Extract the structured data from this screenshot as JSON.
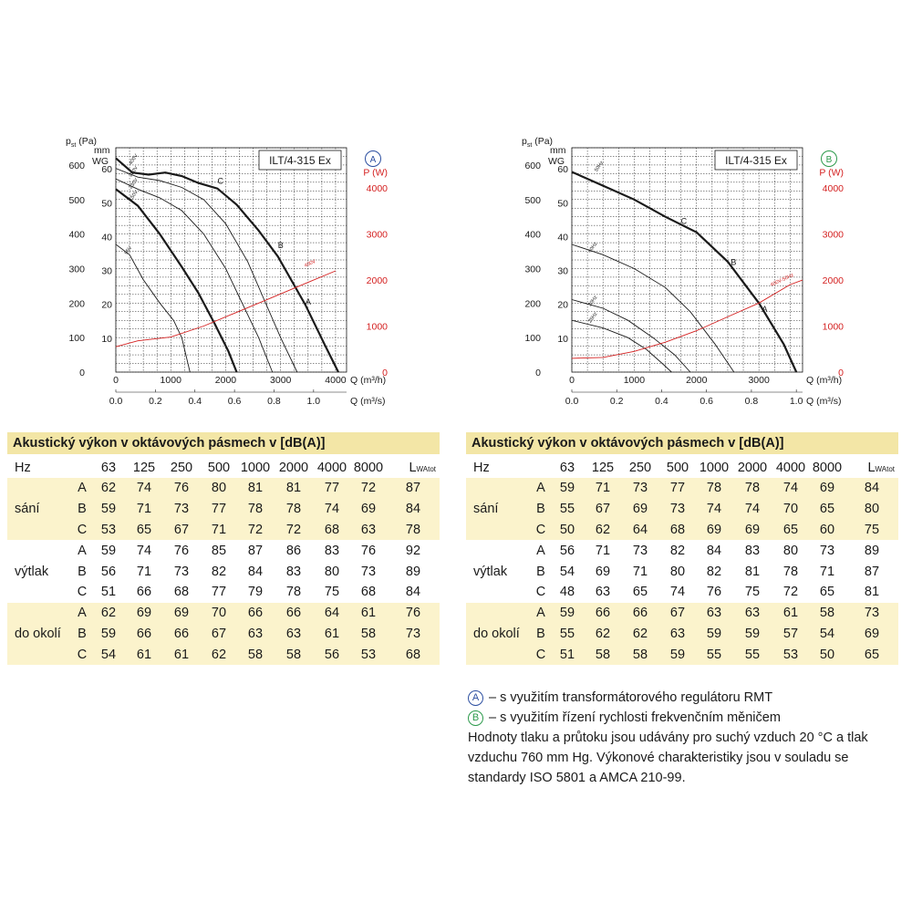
{
  "chart_data": [
    {
      "type": "line",
      "model_label": "ILT/4-315 Ex",
      "badge": "A",
      "badge_color": "#2b4ea0",
      "y_left_label": "pst (Pa)",
      "y_left_unit_main": "p",
      "y_left_unit_sub": "st",
      "y_left_unit_tail": "(Pa)",
      "y_mm_label_1": "mm",
      "y_mm_label_2": "WG",
      "y_right_label": "P (W)",
      "x_top_label": "Q (m³/h)",
      "x_bottom_label": "Q (m³/s)",
      "x_top_ticks": [
        "0",
        "1000",
        "2000",
        "3000",
        "4000"
      ],
      "x_bottom_ticks": [
        "0.0",
        "0.2",
        "0.4",
        "0.6",
        "0.8",
        "1.0"
      ],
      "y_pa_ticks": [
        "0",
        "100",
        "200",
        "300",
        "400",
        "500",
        "600"
      ],
      "y_mm_ticks": [
        "10",
        "20",
        "30",
        "40",
        "50",
        "60"
      ],
      "y_w_ticks": [
        "0",
        "1000",
        "2000",
        "3000",
        "4000"
      ],
      "xlim": [
        0,
        4200
      ],
      "ylim": [
        0,
        650
      ],
      "wlim": [
        0,
        4875
      ],
      "curve_color": "#1a1a1a",
      "power_color": "#d42020",
      "point_labels": [
        {
          "text": "C",
          "x": 1850,
          "y": 545
        },
        {
          "text": "B",
          "x": 2950,
          "y": 360
        },
        {
          "text": "A",
          "x": 3450,
          "y": 195
        }
      ],
      "series": [
        {
          "name": "400V",
          "bold": true,
          "label_at": [
            280,
            600
          ],
          "points": [
            [
              0,
              620
            ],
            [
              300,
              578
            ],
            [
              600,
              572
            ],
            [
              900,
              578
            ],
            [
              1200,
              568
            ],
            [
              1500,
              548
            ],
            [
              1850,
              532
            ],
            [
              2200,
              485
            ],
            [
              2600,
              410
            ],
            [
              2950,
              335
            ],
            [
              3450,
              195
            ],
            [
              3800,
              80
            ],
            [
              4050,
              0
            ]
          ]
        },
        {
          "name": "280V",
          "bold": false,
          "label_at": [
            280,
            565
          ],
          "points": [
            [
              0,
              590
            ],
            [
              400,
              565
            ],
            [
              800,
              555
            ],
            [
              1200,
              535
            ],
            [
              1600,
              500
            ],
            [
              2000,
              430
            ],
            [
              2400,
              320
            ],
            [
              2700,
              210
            ],
            [
              3000,
              100
            ],
            [
              3300,
              0
            ]
          ]
        },
        {
          "name": "230V",
          "bold": false,
          "label_at": [
            280,
            530
          ],
          "points": [
            [
              0,
              560
            ],
            [
              400,
              530
            ],
            [
              800,
              505
            ],
            [
              1200,
              468
            ],
            [
              1600,
              400
            ],
            [
              2000,
              300
            ],
            [
              2300,
              200
            ],
            [
              2600,
              100
            ],
            [
              2850,
              0
            ]
          ]
        },
        {
          "name": "150V",
          "bold": true,
          "label_at": [
            280,
            495
          ],
          "points": [
            [
              0,
              530
            ],
            [
              400,
              482
            ],
            [
              800,
              400
            ],
            [
              1200,
              305
            ],
            [
              1500,
              230
            ],
            [
              1800,
              140
            ],
            [
              2050,
              60
            ],
            [
              2200,
              0
            ]
          ]
        },
        {
          "name": "95V",
          "bold": false,
          "label_at": [
            200,
            340
          ],
          "points": [
            [
              0,
              370
            ],
            [
              250,
              340
            ],
            [
              500,
              268
            ],
            [
              800,
              200
            ],
            [
              1050,
              150
            ],
            [
              1200,
              100
            ],
            [
              1350,
              0
            ]
          ]
        }
      ],
      "power_series": [
        {
          "name": "400V",
          "label_at": [
            3450,
            2280
          ],
          "points": [
            [
              0,
              550
            ],
            [
              400,
              680
            ],
            [
              1000,
              760
            ],
            [
              1600,
              1000
            ],
            [
              2200,
              1300
            ],
            [
              2800,
              1600
            ],
            [
              3500,
              1950
            ],
            [
              4000,
              2200
            ]
          ]
        }
      ]
    },
    {
      "type": "line",
      "model_label": "ILT/4-315 Ex",
      "badge": "B",
      "badge_color": "#2c9a4b",
      "y_left_label": "pst (Pa)",
      "y_left_unit_main": "p",
      "y_left_unit_sub": "st",
      "y_left_unit_tail": "(Pa)",
      "y_mm_label_1": "mm",
      "y_mm_label_2": "WG",
      "y_right_label": "P (W)",
      "x_top_label": "Q (m³/h)",
      "x_bottom_label": "Q (m³/s)",
      "x_top_ticks": [
        "0",
        "1000",
        "2000",
        "3000"
      ],
      "x_bottom_ticks": [
        "0.0",
        "0.2",
        "0.4",
        "0.6",
        "0.8",
        "1.0"
      ],
      "y_pa_ticks": [
        "0",
        "100",
        "200",
        "300",
        "400",
        "500",
        "600"
      ],
      "y_mm_ticks": [
        "10",
        "20",
        "30",
        "40",
        "50",
        "60"
      ],
      "y_w_ticks": [
        "0",
        "1000",
        "2000",
        "3000",
        "4000"
      ],
      "xlim": [
        0,
        3700
      ],
      "ylim": [
        0,
        650
      ],
      "wlim": [
        0,
        4875
      ],
      "curve_color": "#1a1a1a",
      "power_color": "#d42020",
      "point_labels": [
        {
          "text": "C",
          "x": 1750,
          "y": 430
        },
        {
          "text": "B",
          "x": 2550,
          "y": 310
        },
        {
          "text": "A",
          "x": 3050,
          "y": 175
        }
      ],
      "series": [
        {
          "name": "50Hz",
          "bold": true,
          "label_at": [
            400,
            580
          ],
          "points": [
            [
              0,
              580
            ],
            [
              500,
              540
            ],
            [
              1000,
              500
            ],
            [
              1500,
              450
            ],
            [
              2000,
              405
            ],
            [
              2500,
              320
            ],
            [
              3000,
              200
            ],
            [
              3400,
              80
            ],
            [
              3600,
              0
            ]
          ]
        },
        {
          "name": "40Hz",
          "bold": false,
          "label_at": [
            300,
            345
          ],
          "points": [
            [
              0,
              370
            ],
            [
              500,
              340
            ],
            [
              1000,
              300
            ],
            [
              1500,
              245
            ],
            [
              1900,
              175
            ],
            [
              2300,
              80
            ],
            [
              2600,
              0
            ]
          ]
        },
        {
          "name": "30Hz",
          "bold": false,
          "label_at": [
            300,
            190
          ],
          "points": [
            [
              0,
              210
            ],
            [
              500,
              185
            ],
            [
              900,
              150
            ],
            [
              1300,
              100
            ],
            [
              1650,
              50
            ],
            [
              1900,
              0
            ]
          ]
        },
        {
          "name": "25Hz",
          "bold": false,
          "label_at": [
            300,
            142
          ],
          "points": [
            [
              0,
              150
            ],
            [
              500,
              128
            ],
            [
              900,
              100
            ],
            [
              1200,
              65
            ],
            [
              1450,
              25
            ],
            [
              1600,
              0
            ]
          ]
        }
      ],
      "power_series": [
        {
          "name": "400V-50Hz",
          "label_at": [
            3200,
            1860
          ],
          "points": [
            [
              0,
              300
            ],
            [
              500,
              320
            ],
            [
              1000,
              450
            ],
            [
              1500,
              650
            ],
            [
              2000,
              900
            ],
            [
              2500,
              1200
            ],
            [
              3000,
              1500
            ],
            [
              3500,
              1900
            ],
            [
              3700,
              2000
            ]
          ]
        }
      ]
    }
  ],
  "tables": [
    {
      "title": "Akustický výkon v oktávových pásmech v [dB(A)]",
      "hz_label": "Hz",
      "headers": [
        "63",
        "125",
        "250",
        "500",
        "1000",
        "2000",
        "4000",
        "8000"
      ],
      "total_label_main": "L",
      "total_label_sub": "WAtot",
      "groups": [
        {
          "name": "sání",
          "shaded": true,
          "rows": [
            {
              "label": "A",
              "values": [
                "62",
                "74",
                "76",
                "80",
                "81",
                "81",
                "77",
                "72",
                "87"
              ]
            },
            {
              "label": "B",
              "values": [
                "59",
                "71",
                "73",
                "77",
                "78",
                "78",
                "74",
                "69",
                "84"
              ]
            },
            {
              "label": "C",
              "values": [
                "53",
                "65",
                "67",
                "71",
                "72",
                "72",
                "68",
                "63",
                "78"
              ]
            }
          ]
        },
        {
          "name": "výtlak",
          "shaded": false,
          "rows": [
            {
              "label": "A",
              "values": [
                "59",
                "74",
                "76",
                "85",
                "87",
                "86",
                "83",
                "76",
                "92"
              ]
            },
            {
              "label": "B",
              "values": [
                "56",
                "71",
                "73",
                "82",
                "84",
                "83",
                "80",
                "73",
                "89"
              ]
            },
            {
              "label": "C",
              "values": [
                "51",
                "66",
                "68",
                "77",
                "79",
                "78",
                "75",
                "68",
                "84"
              ]
            }
          ]
        },
        {
          "name": "do okolí",
          "shaded": true,
          "rows": [
            {
              "label": "A",
              "values": [
                "62",
                "69",
                "69",
                "70",
                "66",
                "66",
                "64",
                "61",
                "76"
              ]
            },
            {
              "label": "B",
              "values": [
                "59",
                "66",
                "66",
                "67",
                "63",
                "63",
                "61",
                "58",
                "73"
              ]
            },
            {
              "label": "C",
              "values": [
                "54",
                "61",
                "61",
                "62",
                "58",
                "58",
                "56",
                "53",
                "68"
              ]
            }
          ]
        }
      ]
    },
    {
      "title": "Akustický výkon v oktávových pásmech v [dB(A)]",
      "hz_label": "Hz",
      "headers": [
        "63",
        "125",
        "250",
        "500",
        "1000",
        "2000",
        "4000",
        "8000"
      ],
      "total_label_main": "L",
      "total_label_sub": "WAtot",
      "groups": [
        {
          "name": "sání",
          "shaded": true,
          "rows": [
            {
              "label": "A",
              "values": [
                "59",
                "71",
                "73",
                "77",
                "78",
                "78",
                "74",
                "69",
                "84"
              ]
            },
            {
              "label": "B",
              "values": [
                "55",
                "67",
                "69",
                "73",
                "74",
                "74",
                "70",
                "65",
                "80"
              ]
            },
            {
              "label": "C",
              "values": [
                "50",
                "62",
                "64",
                "68",
                "69",
                "69",
                "65",
                "60",
                "75"
              ]
            }
          ]
        },
        {
          "name": "výtlak",
          "shaded": false,
          "rows": [
            {
              "label": "A",
              "values": [
                "56",
                "71",
                "73",
                "82",
                "84",
                "83",
                "80",
                "73",
                "89"
              ]
            },
            {
              "label": "B",
              "values": [
                "54",
                "69",
                "71",
                "80",
                "82",
                "81",
                "78",
                "71",
                "87"
              ]
            },
            {
              "label": "C",
              "values": [
                "48",
                "63",
                "65",
                "74",
                "76",
                "75",
                "72",
                "65",
                "81"
              ]
            }
          ]
        },
        {
          "name": "do okolí",
          "shaded": true,
          "rows": [
            {
              "label": "A",
              "values": [
                "59",
                "66",
                "66",
                "67",
                "63",
                "63",
                "61",
                "58",
                "73"
              ]
            },
            {
              "label": "B",
              "values": [
                "55",
                "62",
                "62",
                "63",
                "59",
                "59",
                "57",
                "54",
                "69"
              ]
            },
            {
              "label": "C",
              "values": [
                "51",
                "58",
                "58",
                "59",
                "55",
                "55",
                "53",
                "50",
                "65"
              ]
            }
          ]
        }
      ]
    }
  ],
  "notes": {
    "a_badge": "A",
    "a_color": "#2b4ea0",
    "a_text": "– s využitím transformátorového regulátoru RMT",
    "b_badge": "B",
    "b_color": "#2c9a4b",
    "b_text": "– s využitím řízení rychlosti frekvenčním měničem",
    "paragraph": "Hodnoty tlaku a průtoku jsou udávány pro suchý vzduch 20 °C a tlak vzduchu 760 mm Hg. Výkonové charakteristiky jsou v souladu se standardy ISO 5801 a AMCA 210-99."
  }
}
